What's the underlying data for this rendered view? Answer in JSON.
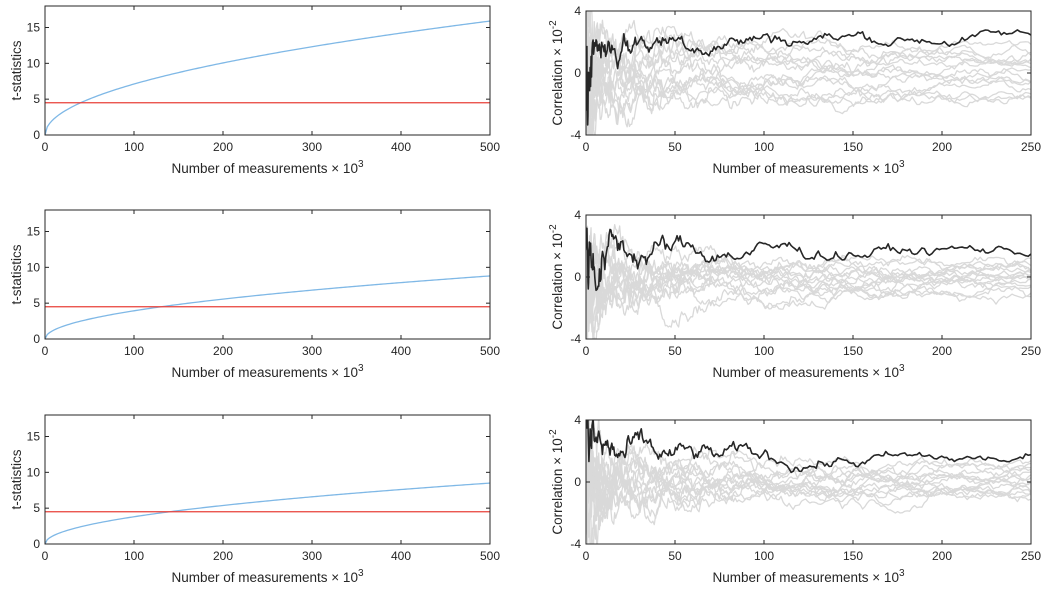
{
  "chart_data": [
    {
      "type": "line",
      "xlabel": "Number of measurements × 10",
      "xlabel_sup": "3",
      "ylabel": "t-statistics",
      "xlim": [
        0,
        500
      ],
      "ylim": [
        0,
        18
      ],
      "xticks": [
        0,
        100,
        200,
        300,
        400,
        500
      ],
      "yticks": [
        0,
        5,
        10,
        15
      ],
      "series": [
        {
          "kind": "sqrt-curve",
          "color": "#7fb8e6",
          "x": [
            0,
            50,
            100,
            200,
            300,
            400,
            500
          ],
          "values": [
            0,
            5.0,
            7.1,
            10.0,
            12.3,
            14.2,
            15.9
          ]
        },
        {
          "kind": "threshold",
          "color": "#e8403a",
          "x": [
            0,
            500
          ],
          "values": [
            4.5,
            4.5
          ]
        }
      ]
    },
    {
      "type": "line",
      "xlabel": "Number of measurements × 10",
      "xlabel_sup": "3",
      "ylabel": "Correlation × 10",
      "ylabel_sup": "-2",
      "xlim": [
        0,
        250
      ],
      "ylim": [
        -4,
        4
      ],
      "xticks": [
        0,
        50,
        100,
        150,
        200,
        250
      ],
      "yticks": [
        -4,
        0,
        4
      ],
      "highlight": {
        "color": "#262626",
        "final": 2.3
      },
      "others": {
        "color": "#d9d9d9",
        "finals": [
          1.8,
          1.5,
          1.2,
          1.0,
          0.7,
          0.4,
          0.1,
          -0.3,
          -0.7,
          -1.0,
          -1.3,
          -1.5,
          -1.8,
          0.9,
          -0.5
        ]
      }
    },
    {
      "type": "line",
      "xlabel": "Number of measurements × 10",
      "xlabel_sup": "3",
      "ylabel": "t-statistics",
      "xlim": [
        0,
        500
      ],
      "ylim": [
        0,
        18
      ],
      "xticks": [
        0,
        100,
        200,
        300,
        400,
        500
      ],
      "yticks": [
        0,
        5,
        10,
        15
      ],
      "series": [
        {
          "kind": "sqrt-curve",
          "color": "#7fb8e6",
          "x": [
            0,
            50,
            100,
            130,
            200,
            300,
            400,
            500
          ],
          "values": [
            0,
            2.8,
            3.9,
            4.5,
            5.6,
            6.9,
            7.9,
            8.8
          ]
        },
        {
          "kind": "threshold",
          "color": "#e8403a",
          "x": [
            0,
            500
          ],
          "values": [
            4.5,
            4.5
          ]
        }
      ]
    },
    {
      "type": "line",
      "xlabel": "Number of measurements × 10",
      "xlabel_sup": "3",
      "ylabel": "Correlation × 10",
      "ylabel_sup": "-2",
      "xlim": [
        0,
        250
      ],
      "ylim": [
        -4,
        4
      ],
      "xticks": [
        0,
        50,
        100,
        150,
        200,
        250
      ],
      "yticks": [
        -4,
        0,
        4
      ],
      "highlight": {
        "color": "#262626",
        "final": 1.7
      },
      "others": {
        "color": "#d9d9d9",
        "finals": [
          1.0,
          0.8,
          0.6,
          0.4,
          0.2,
          0.0,
          -0.2,
          -0.4,
          -0.6,
          -0.8,
          -1.0,
          -1.2,
          0.3,
          -0.1,
          0.5
        ]
      }
    },
    {
      "type": "line",
      "xlabel": "Number of measurements × 10",
      "xlabel_sup": "3",
      "ylabel": "t-statistics",
      "xlim": [
        0,
        500
      ],
      "ylim": [
        0,
        18
      ],
      "xticks": [
        0,
        100,
        200,
        300,
        400,
        500
      ],
      "yticks": [
        0,
        5,
        10,
        15
      ],
      "series": [
        {
          "kind": "sqrt-curve",
          "color": "#7fb8e6",
          "x": [
            0,
            50,
            100,
            140,
            200,
            300,
            400,
            500
          ],
          "values": [
            0,
            2.7,
            3.8,
            4.5,
            5.4,
            6.6,
            7.6,
            8.5
          ]
        },
        {
          "kind": "threshold",
          "color": "#e8403a",
          "x": [
            0,
            500
          ],
          "values": [
            4.5,
            4.5
          ]
        }
      ]
    },
    {
      "type": "line",
      "xlabel": "Number of measurements × 10",
      "xlabel_sup": "3",
      "ylabel": "Correlation × 10",
      "ylabel_sup": "-2",
      "xlim": [
        0,
        250
      ],
      "ylim": [
        -4,
        4
      ],
      "xticks": [
        0,
        50,
        100,
        150,
        200,
        250
      ],
      "yticks": [
        -4,
        0,
        4
      ],
      "highlight": {
        "color": "#262626",
        "final": 1.4
      },
      "others": {
        "color": "#d9d9d9",
        "finals": [
          1.2,
          1.0,
          0.8,
          0.6,
          0.4,
          0.2,
          0.0,
          -0.2,
          -0.4,
          -0.6,
          -0.8,
          -1.0,
          0.3,
          -0.3,
          0.1
        ]
      }
    }
  ]
}
